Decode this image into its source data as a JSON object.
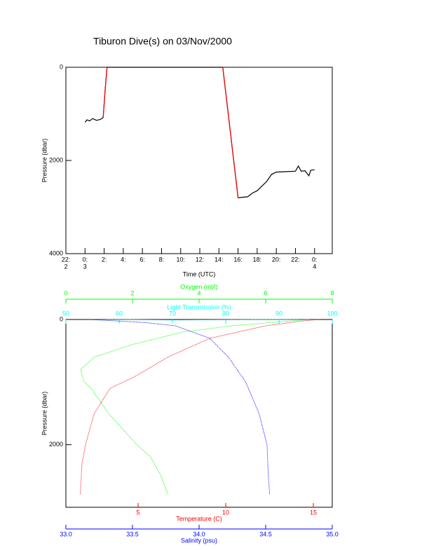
{
  "chart_data": [
    {
      "type": "line",
      "title": "Tiburon Dive(s) on 03/Nov/2000",
      "x_label": "Time (UTC)",
      "y_label": "Pressure (dbar)",
      "invert_y": true,
      "xlim": [
        -2,
        25.85
      ],
      "xticks": [
        {
          "value": -2,
          "label": "22:",
          "day": "2"
        },
        {
          "value": 0,
          "label": "0:",
          "day": "3"
        },
        {
          "value": 2,
          "label": "2:"
        },
        {
          "value": 4,
          "label": "4:"
        },
        {
          "value": 6,
          "label": "6:"
        },
        {
          "value": 8,
          "label": "8:"
        },
        {
          "value": 10,
          "label": "10:"
        },
        {
          "value": 12,
          "label": "12:"
        },
        {
          "value": 14,
          "label": "14:"
        },
        {
          "value": 16,
          "label": "16:"
        },
        {
          "value": 18,
          "label": "18:"
        },
        {
          "value": 20,
          "label": "20:"
        },
        {
          "value": 22,
          "label": "22:"
        },
        {
          "value": 24,
          "label": "0:",
          "day": "4"
        }
      ],
      "ylim": [
        0,
        4000
      ],
      "yticks": [
        0,
        2000,
        4000
      ],
      "series": [
        {
          "color": "#000000",
          "x": [
            0,
            0.2,
            0.5,
            0.8,
            1.2,
            1.6,
            1.9,
            2.1,
            2.3,
            4,
            8,
            12,
            14.4,
            15.2,
            16,
            16.5,
            17,
            17.5,
            18,
            18.5,
            19,
            19.5,
            20,
            21,
            22,
            22.3,
            22.6,
            23,
            23.4,
            23.6,
            24
          ],
          "values": [
            1180,
            1130,
            1150,
            1100,
            1140,
            1120,
            1080,
            500,
            0,
            0,
            0,
            0,
            0,
            1400,
            2800,
            2790,
            2780,
            2700,
            2650,
            2550,
            2450,
            2300,
            2250,
            2240,
            2230,
            2120,
            2230,
            2220,
            2330,
            2210,
            2200
          ]
        },
        {
          "color": "#ff0000",
          "x": [
            1.9,
            2.1,
            2.3,
            null,
            14.4,
            15.2,
            16
          ],
          "values": [
            1080,
            500,
            0,
            null,
            0,
            1400,
            2800
          ]
        }
      ]
    },
    {
      "type": "profile",
      "y_label": "Pressure (dbar)",
      "invert_y": true,
      "ylim": [
        0,
        3000
      ],
      "yticks": [
        0,
        2000
      ],
      "x_axes": [
        {
          "label": "Oxygen (ml/l)",
          "color": "#00ff00",
          "position": "top",
          "xlim": [
            0,
            8
          ],
          "xticks": [
            0,
            2,
            4,
            6,
            8
          ]
        },
        {
          "label": "Light Transmission (%)",
          "color": "#00ffff",
          "position": "top",
          "xlim": [
            50,
            100
          ],
          "xticks": [
            50,
            60,
            70,
            80,
            90,
            100
          ]
        },
        {
          "label": "Temperature (C)",
          "color": "#ff0000",
          "position": "bottom",
          "xlim": [
            0.88,
            16.08
          ],
          "xticks": [
            5,
            10,
            15
          ]
        },
        {
          "label": "Salinity (psu)",
          "color": "#0000ff",
          "position": "bottom",
          "xlim": [
            33,
            35
          ],
          "xticks": [
            {
              "value": 33,
              "label": "33.0"
            },
            {
              "value": 33.5,
              "label": "33.5"
            },
            {
              "value": 34,
              "label": "34.0"
            },
            {
              "value": 34.5,
              "label": "34.5"
            },
            {
              "value": 35,
              "label": "35.0"
            }
          ]
        }
      ],
      "series": [
        {
          "x_axis": 0,
          "color": "#00ff00",
          "pressure": [
            0,
            100,
            200,
            400,
            600,
            800,
            1000,
            1100,
            1500,
            2000,
            2200,
            2500,
            2800
          ],
          "values": [
            7.3,
            5.0,
            3.5,
            2.0,
            0.86,
            0.44,
            0.55,
            0.76,
            1.28,
            2.13,
            2.55,
            2.86,
            3.07
          ]
        },
        {
          "x_axis": 1,
          "color": "#00ffff",
          "pressure": [
            5,
            0,
            10,
            5,
            0,
            0,
            5
          ],
          "values": [
            55,
            62,
            70,
            78,
            85,
            92,
            97
          ]
        },
        {
          "x_axis": 2,
          "color": "#ff0000",
          "pressure": [
            0,
            20,
            100,
            300,
            600,
            900,
            1100,
            1500,
            2000,
            2300,
            2800
          ],
          "values": [
            15.3,
            14.5,
            12.3,
            9.1,
            6.7,
            4.9,
            3.4,
            2.5,
            2.0,
            1.8,
            1.7
          ]
        },
        {
          "x_axis": 3,
          "color": "#0000ff",
          "pressure": [
            0,
            50,
            100,
            300,
            600,
            1000,
            1100,
            1500,
            2000,
            2500,
            2800
          ],
          "values": [
            33.19,
            33.6,
            33.82,
            34.08,
            34.22,
            34.35,
            34.37,
            34.45,
            34.51,
            34.52,
            34.53
          ]
        }
      ]
    }
  ]
}
